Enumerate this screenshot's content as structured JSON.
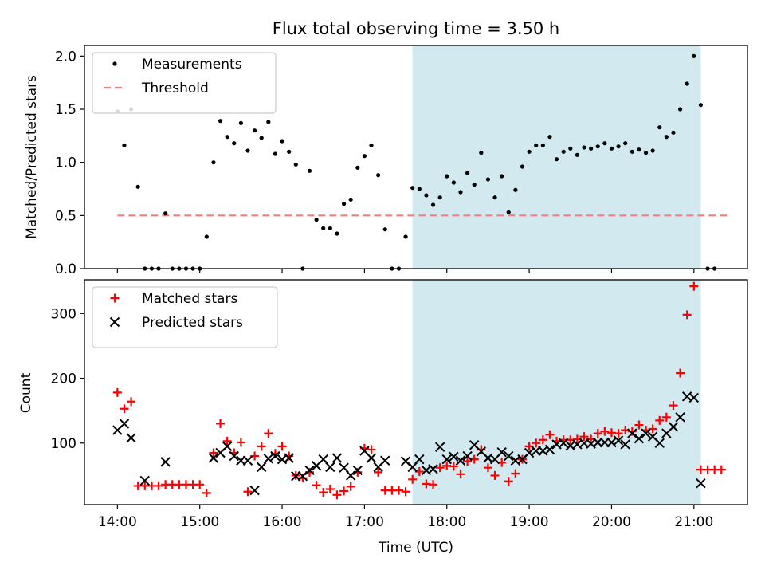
{
  "chart_data": [
    {
      "type": "scatter",
      "title": "Flux total observing time = 3.50 h",
      "ylabel": "Matched/Predicted stars",
      "xlabel": "",
      "ylim": [
        0,
        2.1
      ],
      "yticks": [
        0.0,
        0.5,
        1.0,
        1.5,
        2.0
      ],
      "ytick_labels": [
        "0.0",
        "0.5",
        "1.0",
        "1.5",
        "2.0"
      ],
      "xlim_hours": [
        13.6,
        21.65
      ],
      "shaded_interval": {
        "start": "17:35",
        "end": "21:05",
        "color": "#d3e9f0"
      },
      "legend": {
        "placement": "upper left",
        "entries": [
          "Measurements",
          "Threshold"
        ]
      },
      "threshold": {
        "name": "Threshold",
        "value": 0.5,
        "x_start": "14:00",
        "x_end": "21:25",
        "color": "#f08080"
      },
      "series": [
        {
          "name": "Measurements",
          "color": "#000000",
          "marker": "dot",
          "points": [
            [
              "14:00",
              1.48
            ],
            [
              "14:05",
              1.16
            ],
            [
              "14:10",
              1.5
            ],
            [
              "14:15",
              0.77
            ],
            [
              "14:20",
              0.0
            ],
            [
              "14:25",
              0.0
            ],
            [
              "14:30",
              0.0
            ],
            [
              "14:35",
              0.52
            ],
            [
              "14:40",
              0.0
            ],
            [
              "14:45",
              0.0
            ],
            [
              "14:50",
              0.0
            ],
            [
              "14:55",
              0.0
            ],
            [
              "15:00",
              0.0
            ],
            [
              "15:05",
              0.3
            ],
            [
              "15:10",
              1.0
            ],
            [
              "15:15",
              1.39
            ],
            [
              "15:20",
              1.24
            ],
            [
              "15:25",
              1.18
            ],
            [
              "15:30",
              1.37
            ],
            [
              "15:35",
              1.11
            ],
            [
              "15:40",
              1.3
            ],
            [
              "15:45",
              1.23
            ],
            [
              "15:50",
              1.38
            ],
            [
              "15:55",
              1.08
            ],
            [
              "16:00",
              1.2
            ],
            [
              "16:05",
              1.1
            ],
            [
              "16:10",
              0.98
            ],
            [
              "16:15",
              0.0
            ],
            [
              "16:20",
              0.92
            ],
            [
              "16:25",
              0.46
            ],
            [
              "16:30",
              0.38
            ],
            [
              "16:35",
              0.38
            ],
            [
              "16:40",
              0.33
            ],
            [
              "16:45",
              0.61
            ],
            [
              "16:50",
              0.65
            ],
            [
              "16:55",
              0.95
            ],
            [
              "17:00",
              1.06
            ],
            [
              "17:05",
              1.16
            ],
            [
              "17:10",
              0.88
            ],
            [
              "17:15",
              0.37
            ],
            [
              "17:20",
              0.0
            ],
            [
              "17:25",
              0.0
            ],
            [
              "17:30",
              0.3
            ],
            [
              "17:35",
              0.76
            ],
            [
              "17:40",
              0.75
            ],
            [
              "17:45",
              0.69
            ],
            [
              "17:50",
              0.6
            ],
            [
              "17:55",
              0.67
            ],
            [
              "18:00",
              0.87
            ],
            [
              "18:05",
              0.81
            ],
            [
              "18:10",
              0.72
            ],
            [
              "18:15",
              0.9
            ],
            [
              "18:20",
              0.79
            ],
            [
              "18:25",
              1.09
            ],
            [
              "18:30",
              0.84
            ],
            [
              "18:35",
              0.67
            ],
            [
              "18:40",
              0.87
            ],
            [
              "18:45",
              0.53
            ],
            [
              "18:50",
              0.74
            ],
            [
              "18:55",
              0.96
            ],
            [
              "19:00",
              1.1
            ],
            [
              "19:05",
              1.16
            ],
            [
              "19:10",
              1.16
            ],
            [
              "19:15",
              1.24
            ],
            [
              "19:20",
              1.03
            ],
            [
              "19:25",
              1.1
            ],
            [
              "19:30",
              1.13
            ],
            [
              "19:35",
              1.07
            ],
            [
              "19:40",
              1.14
            ],
            [
              "19:45",
              1.13
            ],
            [
              "19:50",
              1.15
            ],
            [
              "19:55",
              1.18
            ],
            [
              "20:00",
              1.13
            ],
            [
              "20:05",
              1.15
            ],
            [
              "20:10",
              1.18
            ],
            [
              "20:15",
              1.1
            ],
            [
              "20:20",
              1.12
            ],
            [
              "20:25",
              1.09
            ],
            [
              "20:30",
              1.11
            ],
            [
              "20:35",
              1.33
            ],
            [
              "20:40",
              1.24
            ],
            [
              "20:45",
              1.28
            ],
            [
              "20:50",
              1.5
            ],
            [
              "20:55",
              1.74
            ],
            [
              "21:00",
              2.0
            ],
            [
              "21:05",
              1.54
            ],
            [
              "21:10",
              0.0
            ],
            [
              "21:15",
              0.0
            ]
          ]
        }
      ]
    },
    {
      "type": "scatter",
      "title": "",
      "ylabel": "Count",
      "xlabel": "Time (UTC)",
      "ylim": [
        5,
        352
      ],
      "yticks": [
        100,
        200,
        300
      ],
      "ytick_labels": [
        "100",
        "200",
        "300"
      ],
      "xlim_hours": [
        13.6,
        21.65
      ],
      "xticks": [
        "14:00",
        "15:00",
        "16:00",
        "17:00",
        "18:00",
        "19:00",
        "20:00",
        "21:00"
      ],
      "shaded_interval": {
        "start": "17:35",
        "end": "21:05",
        "color": "#d3e9f0"
      },
      "legend": {
        "placement": "upper left",
        "entries": [
          "Matched stars",
          "Predicted stars"
        ]
      },
      "series": [
        {
          "name": "Matched stars",
          "color": "#ff0000",
          "marker": "plus",
          "points": [
            [
              "14:00",
              178
            ],
            [
              "14:05",
              153
            ],
            [
              "14:10",
              164
            ],
            [
              "14:15",
              34
            ],
            [
              "14:20",
              34
            ],
            [
              "14:25",
              34
            ],
            [
              "14:30",
              34
            ],
            [
              "14:35",
              36
            ],
            [
              "14:40",
              36
            ],
            [
              "14:45",
              36
            ],
            [
              "14:50",
              36
            ],
            [
              "14:55",
              36
            ],
            [
              "15:00",
              36
            ],
            [
              "15:05",
              23
            ],
            [
              "15:10",
              85
            ],
            [
              "15:15",
              130
            ],
            [
              "15:20",
              103
            ],
            [
              "15:25",
              85
            ],
            [
              "15:30",
              101
            ],
            [
              "15:35",
              25
            ],
            [
              "15:40",
              80
            ],
            [
              "15:45",
              95
            ],
            [
              "15:50",
              115
            ],
            [
              "15:55",
              84
            ],
            [
              "16:00",
              95
            ],
            [
              "16:05",
              80
            ],
            [
              "16:10",
              50
            ],
            [
              "16:15",
              46
            ],
            [
              "16:20",
              55
            ],
            [
              "16:25",
              35
            ],
            [
              "16:30",
              24
            ],
            [
              "16:35",
              29
            ],
            [
              "16:40",
              20
            ],
            [
              "16:45",
              26
            ],
            [
              "16:50",
              33
            ],
            [
              "16:55",
              55
            ],
            [
              "17:00",
              92
            ],
            [
              "17:05",
              90
            ],
            [
              "17:10",
              55
            ],
            [
              "17:15",
              27
            ],
            [
              "17:20",
              27
            ],
            [
              "17:25",
              27
            ],
            [
              "17:30",
              25
            ],
            [
              "17:35",
              44
            ],
            [
              "17:40",
              56
            ],
            [
              "17:45",
              37
            ],
            [
              "17:50",
              36
            ],
            [
              "17:55",
              62
            ],
            [
              "18:00",
              65
            ],
            [
              "18:05",
              64
            ],
            [
              "18:10",
              52
            ],
            [
              "18:15",
              72
            ],
            [
              "18:20",
              75
            ],
            [
              "18:25",
              90
            ],
            [
              "18:30",
              62
            ],
            [
              "18:35",
              50
            ],
            [
              "18:40",
              70
            ],
            [
              "18:45",
              41
            ],
            [
              "18:50",
              53
            ],
            [
              "18:55",
              75
            ],
            [
              "19:00",
              95
            ],
            [
              "19:05",
              100
            ],
            [
              "19:10",
              105
            ],
            [
              "19:15",
              113
            ],
            [
              "19:20",
              103
            ],
            [
              "19:25",
              105
            ],
            [
              "19:30",
              105
            ],
            [
              "19:35",
              106
            ],
            [
              "19:40",
              110
            ],
            [
              "19:45",
              106
            ],
            [
              "19:50",
              115
            ],
            [
              "19:55",
              118
            ],
            [
              "20:00",
              116
            ],
            [
              "20:05",
              115
            ],
            [
              "20:10",
              120
            ],
            [
              "20:15",
              118
            ],
            [
              "20:20",
              128
            ],
            [
              "20:25",
              120
            ],
            [
              "20:30",
              122
            ],
            [
              "20:35",
              135
            ],
            [
              "20:40",
              140
            ],
            [
              "20:45",
              158
            ],
            [
              "20:50",
              208
            ],
            [
              "20:55",
              298
            ],
            [
              "21:00",
              342
            ],
            [
              "21:05",
              59
            ],
            [
              "21:10",
              59
            ],
            [
              "21:15",
              59
            ],
            [
              "21:20",
              59
            ]
          ]
        },
        {
          "name": "Predicted stars",
          "color": "#000000",
          "marker": "x",
          "points": [
            [
              "14:00",
              120
            ],
            [
              "14:05",
              130
            ],
            [
              "14:10",
              108
            ],
            [
              "14:20",
              42
            ],
            [
              "14:35",
              71
            ],
            [
              "15:10",
              77
            ],
            [
              "15:15",
              85
            ],
            [
              "15:20",
              95
            ],
            [
              "15:25",
              80
            ],
            [
              "15:30",
              73
            ],
            [
              "15:35",
              73
            ],
            [
              "15:40",
              27
            ],
            [
              "15:45",
              63
            ],
            [
              "15:50",
              76
            ],
            [
              "15:55",
              80
            ],
            [
              "16:00",
              75
            ],
            [
              "16:05",
              77
            ],
            [
              "16:10",
              49
            ],
            [
              "16:15",
              49
            ],
            [
              "16:20",
              58
            ],
            [
              "16:25",
              65
            ],
            [
              "16:30",
              75
            ],
            [
              "16:35",
              63
            ],
            [
              "16:40",
              77
            ],
            [
              "16:45",
              62
            ],
            [
              "16:50",
              50
            ],
            [
              "16:55",
              58
            ],
            [
              "17:00",
              88
            ],
            [
              "17:05",
              77
            ],
            [
              "17:10",
              63
            ],
            [
              "17:15",
              73
            ],
            [
              "17:30",
              72
            ],
            [
              "17:35",
              63
            ],
            [
              "17:40",
              75
            ],
            [
              "17:45",
              58
            ],
            [
              "17:50",
              60
            ],
            [
              "17:55",
              94
            ],
            [
              "18:00",
              75
            ],
            [
              "18:05",
              79
            ],
            [
              "18:10",
              73
            ],
            [
              "18:15",
              80
            ],
            [
              "18:20",
              97
            ],
            [
              "18:25",
              87
            ],
            [
              "18:30",
              77
            ],
            [
              "18:35",
              75
            ],
            [
              "18:40",
              86
            ],
            [
              "18:45",
              80
            ],
            [
              "18:50",
              73
            ],
            [
              "18:55",
              75
            ],
            [
              "19:00",
              85
            ],
            [
              "19:05",
              88
            ],
            [
              "19:10",
              88
            ],
            [
              "19:15",
              90
            ],
            [
              "19:20",
              98
            ],
            [
              "19:25",
              100
            ],
            [
              "19:30",
              96
            ],
            [
              "19:35",
              98
            ],
            [
              "19:40",
              100
            ],
            [
              "19:45",
              99
            ],
            [
              "19:50",
              101
            ],
            [
              "19:55",
              101
            ],
            [
              "20:00",
              101
            ],
            [
              "20:05",
              104
            ],
            [
              "20:10",
              98
            ],
            [
              "20:15",
              115
            ],
            [
              "20:20",
              107
            ],
            [
              "20:25",
              115
            ],
            [
              "20:30",
              110
            ],
            [
              "20:35",
              100
            ],
            [
              "20:40",
              115
            ],
            [
              "20:45",
              125
            ],
            [
              "20:50",
              140
            ],
            [
              "20:55",
              172
            ],
            [
              "21:00",
              170
            ],
            [
              "21:05",
              38
            ]
          ]
        }
      ]
    }
  ]
}
